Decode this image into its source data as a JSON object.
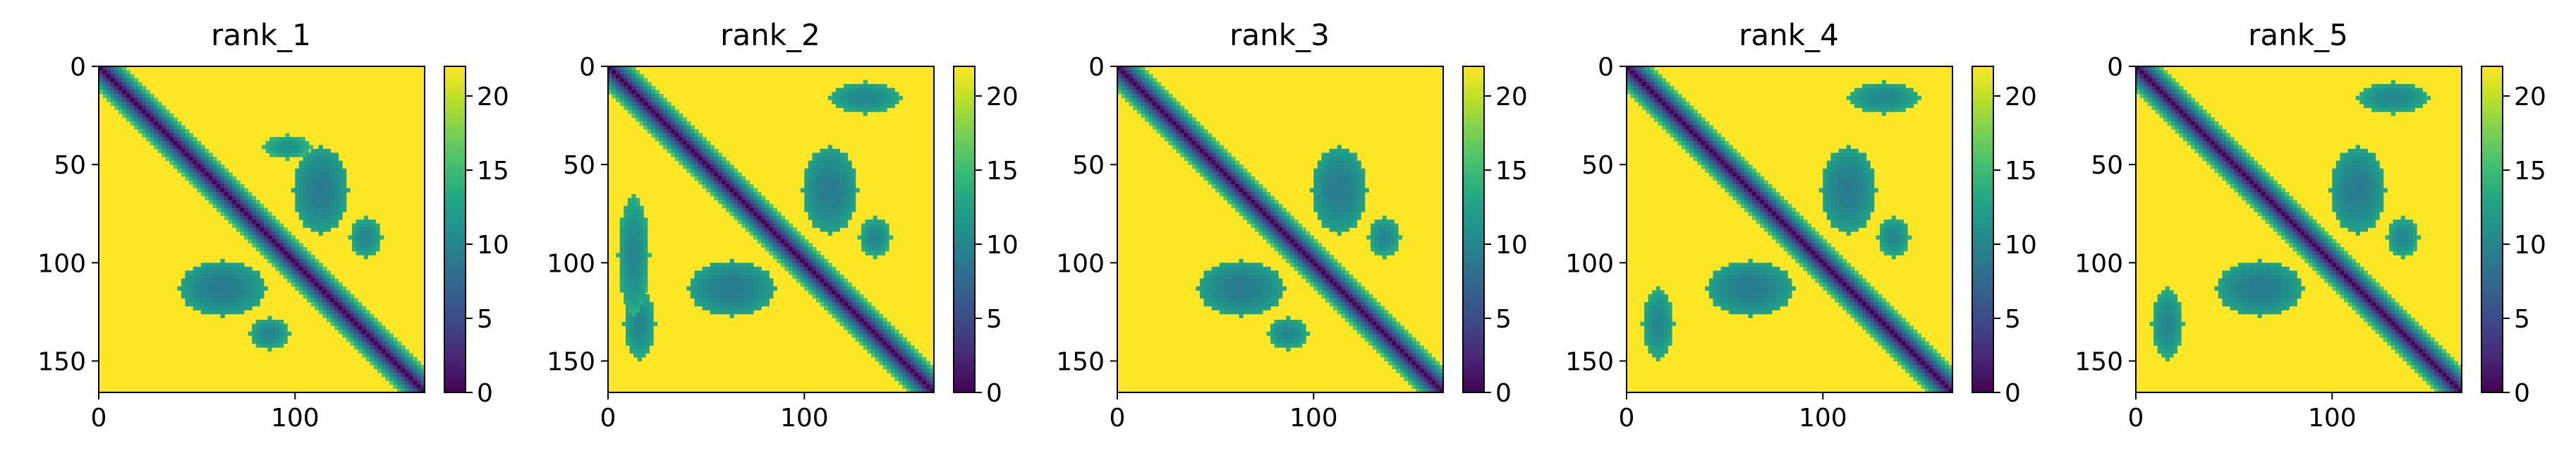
{
  "chart_data": [
    {
      "type": "heatmap",
      "title": "rank_1",
      "matrix_size": 166,
      "xticks": [
        "0",
        "100"
      ],
      "yticks": [
        "0",
        "50",
        "100",
        "150"
      ],
      "colorbar": {
        "ticks": [
          "0",
          "5",
          "10",
          "15",
          "20"
        ],
        "range": [
          0,
          22
        ]
      },
      "colormap": "viridis",
      "features": [
        {
          "kind": "diagonal-band",
          "start": 0,
          "end": 166,
          "halfwidth": 12
        },
        {
          "kind": "contact-blob",
          "i": 62,
          "j": 112,
          "ri": 22,
          "rj": 14,
          "value": 13
        },
        {
          "kind": "contact-blob",
          "i": 112,
          "j": 62,
          "ri": 14,
          "rj": 22,
          "value": 13
        },
        {
          "kind": "contact-blob",
          "i": 86,
          "j": 135,
          "ri": 10,
          "rj": 8,
          "value": 14
        },
        {
          "kind": "contact-blob",
          "i": 135,
          "j": 86,
          "ri": 8,
          "rj": 10,
          "value": 14
        },
        {
          "kind": "contact-blob",
          "i": 40,
          "j": 95,
          "ri": 6,
          "rj": 12,
          "value": 15
        }
      ]
    },
    {
      "type": "heatmap",
      "title": "rank_2",
      "matrix_size": 166,
      "xticks": [
        "0",
        "100"
      ],
      "yticks": [
        "0",
        "50",
        "100",
        "150"
      ],
      "colorbar": {
        "ticks": [
          "0",
          "5",
          "10",
          "15",
          "20"
        ],
        "range": [
          0,
          22
        ]
      },
      "colormap": "viridis",
      "features": [
        {
          "kind": "diagonal-band",
          "start": 0,
          "end": 166,
          "halfwidth": 12
        },
        {
          "kind": "contact-blob",
          "i": 62,
          "j": 112,
          "ri": 22,
          "rj": 14,
          "value": 13
        },
        {
          "kind": "contact-blob",
          "i": 112,
          "j": 62,
          "ri": 14,
          "rj": 22,
          "value": 13
        },
        {
          "kind": "contact-blob",
          "i": 15,
          "j": 130,
          "ri": 8,
          "rj": 18,
          "value": 14
        },
        {
          "kind": "contact-blob",
          "i": 130,
          "j": 15,
          "ri": 18,
          "rj": 8,
          "value": 14
        },
        {
          "kind": "contact-blob",
          "i": 95,
          "j": 12,
          "ri": 30,
          "rj": 8,
          "value": 14
        },
        {
          "kind": "contact-blob",
          "i": 86,
          "j": 135,
          "ri": 10,
          "rj": 8,
          "value": 14
        }
      ]
    },
    {
      "type": "heatmap",
      "title": "rank_3",
      "matrix_size": 166,
      "xticks": [
        "0",
        "100"
      ],
      "yticks": [
        "0",
        "50",
        "100",
        "150"
      ],
      "colorbar": {
        "ticks": [
          "0",
          "5",
          "10",
          "15",
          "20"
        ],
        "range": [
          0,
          22
        ]
      },
      "colormap": "viridis",
      "features": [
        {
          "kind": "diagonal-band",
          "start": 0,
          "end": 166,
          "halfwidth": 12
        },
        {
          "kind": "contact-blob",
          "i": 62,
          "j": 112,
          "ri": 22,
          "rj": 14,
          "value": 13
        },
        {
          "kind": "contact-blob",
          "i": 112,
          "j": 62,
          "ri": 14,
          "rj": 22,
          "value": 13
        },
        {
          "kind": "contact-blob",
          "i": 86,
          "j": 135,
          "ri": 10,
          "rj": 8,
          "value": 14
        },
        {
          "kind": "contact-blob",
          "i": 135,
          "j": 86,
          "ri": 8,
          "rj": 10,
          "value": 14
        }
      ]
    },
    {
      "type": "heatmap",
      "title": "rank_4",
      "matrix_size": 166,
      "xticks": [
        "0",
        "100"
      ],
      "yticks": [
        "0",
        "50",
        "100",
        "150"
      ],
      "colorbar": {
        "ticks": [
          "0",
          "5",
          "10",
          "15",
          "20"
        ],
        "range": [
          0,
          22
        ]
      },
      "colormap": "viridis",
      "features": [
        {
          "kind": "diagonal-band",
          "start": 0,
          "end": 166,
          "halfwidth": 12
        },
        {
          "kind": "contact-blob",
          "i": 62,
          "j": 112,
          "ri": 22,
          "rj": 14,
          "value": 13
        },
        {
          "kind": "contact-blob",
          "i": 112,
          "j": 62,
          "ri": 14,
          "rj": 22,
          "value": 13
        },
        {
          "kind": "contact-blob",
          "i": 15,
          "j": 130,
          "ri": 8,
          "rj": 18,
          "value": 14
        },
        {
          "kind": "contact-blob",
          "i": 130,
          "j": 15,
          "ri": 18,
          "rj": 8,
          "value": 14
        },
        {
          "kind": "contact-blob",
          "i": 86,
          "j": 135,
          "ri": 10,
          "rj": 8,
          "value": 14
        }
      ]
    },
    {
      "type": "heatmap",
      "title": "rank_5",
      "matrix_size": 166,
      "xticks": [
        "0",
        "100"
      ],
      "yticks": [
        "0",
        "50",
        "100",
        "150"
      ],
      "colorbar": {
        "ticks": [
          "0",
          "5",
          "10",
          "15",
          "20"
        ],
        "range": [
          0,
          22
        ]
      },
      "colormap": "viridis",
      "features": [
        {
          "kind": "diagonal-band",
          "start": 0,
          "end": 166,
          "halfwidth": 12
        },
        {
          "kind": "contact-blob",
          "i": 62,
          "j": 112,
          "ri": 22,
          "rj": 14,
          "value": 13
        },
        {
          "kind": "contact-blob",
          "i": 112,
          "j": 62,
          "ri": 14,
          "rj": 22,
          "value": 13
        },
        {
          "kind": "contact-blob",
          "i": 15,
          "j": 130,
          "ri": 8,
          "rj": 18,
          "value": 14
        },
        {
          "kind": "contact-blob",
          "i": 130,
          "j": 15,
          "ri": 18,
          "rj": 8,
          "value": 14
        },
        {
          "kind": "contact-blob",
          "i": 86,
          "j": 135,
          "ri": 10,
          "rj": 8,
          "value": 14
        }
      ]
    }
  ]
}
